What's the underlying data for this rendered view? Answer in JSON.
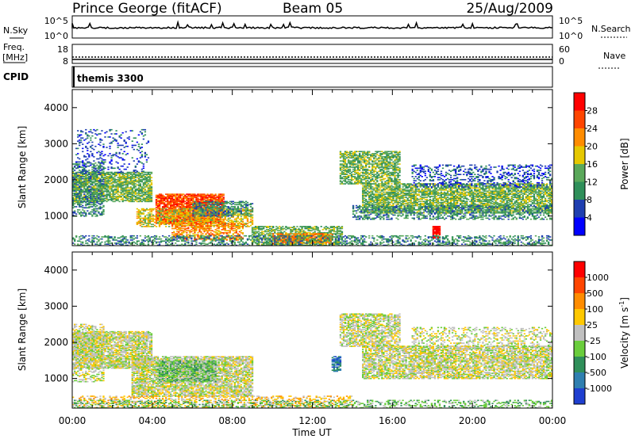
{
  "header": {
    "station": "Prince George (fitACF)",
    "beam": "Beam 05",
    "date": "25/Aug/2009"
  },
  "noise_panel": {
    "left_label": "N.Sky",
    "right_label": "N.Search",
    "left_ticks": [
      "10^5",
      "10^0"
    ],
    "right_ticks": [
      "10^5",
      "10^0"
    ]
  },
  "freq_panel": {
    "left_label_1": "Freq.",
    "left_label_2": "[MHz]",
    "left_ticks": [
      "18",
      "8"
    ],
    "right_label": "Nave",
    "right_ticks": [
      "60",
      "0"
    ]
  },
  "cpid_panel": {
    "label": "CPID",
    "mode": "themis 3300"
  },
  "time_axis": {
    "label": "Time UT",
    "ticks": [
      "00:00",
      "04:00",
      "08:00",
      "12:00",
      "16:00",
      "20:00",
      "00:00"
    ]
  },
  "chart_data": [
    {
      "type": "heatmap",
      "xlabel": "Time UT",
      "ylabel": "Slant Range [km]",
      "x_range_hours": [
        0,
        24
      ],
      "ylim": [
        180,
        4500
      ],
      "y_ticks": [
        1000,
        2000,
        3000,
        4000
      ],
      "colorbar": {
        "label": "Power [dB]",
        "ticks": [
          "4",
          "8",
          "12",
          "16",
          "20",
          "24",
          "28"
        ],
        "colors": [
          "#0000ff",
          "#1f3fb0",
          "#2f8f5a",
          "#5aa85a",
          "#e6c800",
          "#ff8c00",
          "#ff4500",
          "#ff0000"
        ]
      },
      "regions": [
        {
          "t0": 0.0,
          "t1": 4.0,
          "r0": 1400,
          "r1": 2200,
          "level": 3,
          "d": 0.75
        },
        {
          "t0": 0.0,
          "t1": 1.6,
          "r0": 1000,
          "r1": 2500,
          "level": 2,
          "d": 0.45
        },
        {
          "t0": 0.2,
          "t1": 3.8,
          "r0": 2200,
          "r1": 3400,
          "level": 1,
          "d": 0.15
        },
        {
          "t0": 4.2,
          "t1": 7.6,
          "r0": 800,
          "r1": 1600,
          "level": 6,
          "d": 0.85
        },
        {
          "t0": 3.2,
          "t1": 9.0,
          "r0": 700,
          "r1": 1200,
          "level": 4,
          "d": 0.55
        },
        {
          "t0": 6.0,
          "t1": 9.0,
          "r0": 1000,
          "r1": 1400,
          "level": 2,
          "d": 0.55
        },
        {
          "t0": 5.0,
          "t1": 8.5,
          "r0": 350,
          "r1": 800,
          "level": 5,
          "d": 0.5
        },
        {
          "t0": 9.0,
          "t1": 13.5,
          "r0": 180,
          "r1": 700,
          "level": 3,
          "d": 0.6
        },
        {
          "t0": 10.0,
          "t1": 13.0,
          "r0": 250,
          "r1": 520,
          "level": 5,
          "d": 0.7
        },
        {
          "t0": 13.4,
          "t1": 16.4,
          "r0": 1900,
          "r1": 2800,
          "level": 3,
          "d": 0.65
        },
        {
          "t0": 14.5,
          "t1": 24.0,
          "r0": 1100,
          "r1": 1900,
          "level": 3,
          "d": 0.7
        },
        {
          "t0": 14.0,
          "t1": 24.0,
          "r0": 900,
          "r1": 1300,
          "level": 2,
          "d": 0.45
        },
        {
          "t0": 18.0,
          "t1": 18.4,
          "r0": 400,
          "r1": 700,
          "level": 7,
          "d": 0.9
        },
        {
          "t0": 0.0,
          "t1": 24.0,
          "r0": 180,
          "r1": 450,
          "level": 2,
          "d": 0.4
        },
        {
          "t0": 17.0,
          "t1": 24.0,
          "r0": 1800,
          "r1": 2400,
          "level": 1,
          "d": 0.3
        }
      ]
    },
    {
      "type": "heatmap",
      "xlabel": "Time UT",
      "ylabel": "Slant Range [km]",
      "x_range_hours": [
        0,
        24
      ],
      "ylim": [
        180,
        4500
      ],
      "y_ticks": [
        1000,
        2000,
        3000,
        4000
      ],
      "colorbar": {
        "label": "Velocity  [m s",
        "label_sup": "-1",
        "label_end": "]",
        "ticks": [
          "1000",
          "500",
          "100",
          "25",
          "-25",
          "-100",
          "-500",
          "-1000"
        ],
        "colors": [
          "#1f3fd0",
          "#2f7fb0",
          "#2f8f5a",
          "#6acd3c",
          "#c0c0c0",
          "#ffc800",
          "#ff8c00",
          "#ff4500",
          "#ff0000"
        ]
      },
      "regions": [
        {
          "t0": 0.0,
          "t1": 4.0,
          "r0": 1300,
          "r1": 2300,
          "level": 4,
          "d": 0.75
        },
        {
          "t0": 0.0,
          "t1": 1.6,
          "r0": 900,
          "r1": 2500,
          "level": 4,
          "d": 0.4
        },
        {
          "t0": 3.0,
          "t1": 9.0,
          "r0": 500,
          "r1": 1600,
          "level": 4,
          "d": 0.75
        },
        {
          "t0": 4.3,
          "t1": 7.2,
          "r0": 900,
          "r1": 1500,
          "level": 3,
          "d": 0.8
        },
        {
          "t0": 0.0,
          "t1": 14.0,
          "r0": 180,
          "r1": 500,
          "level": 5,
          "d": 0.35
        },
        {
          "t0": 13.4,
          "t1": 16.4,
          "r0": 1900,
          "r1": 2800,
          "level": 4,
          "d": 0.65
        },
        {
          "t0": 14.5,
          "t1": 24.0,
          "r0": 1000,
          "r1": 1900,
          "level": 4,
          "d": 0.7
        },
        {
          "t0": 13.0,
          "t1": 13.4,
          "r0": 1200,
          "r1": 1600,
          "level": 1,
          "d": 0.8
        },
        {
          "t0": 17.0,
          "t1": 24.0,
          "r0": 1800,
          "r1": 2400,
          "level": 4,
          "d": 0.3
        },
        {
          "t0": 0.0,
          "t1": 24.0,
          "r0": 180,
          "r1": 400,
          "level": 3,
          "d": 0.35
        }
      ]
    }
  ]
}
